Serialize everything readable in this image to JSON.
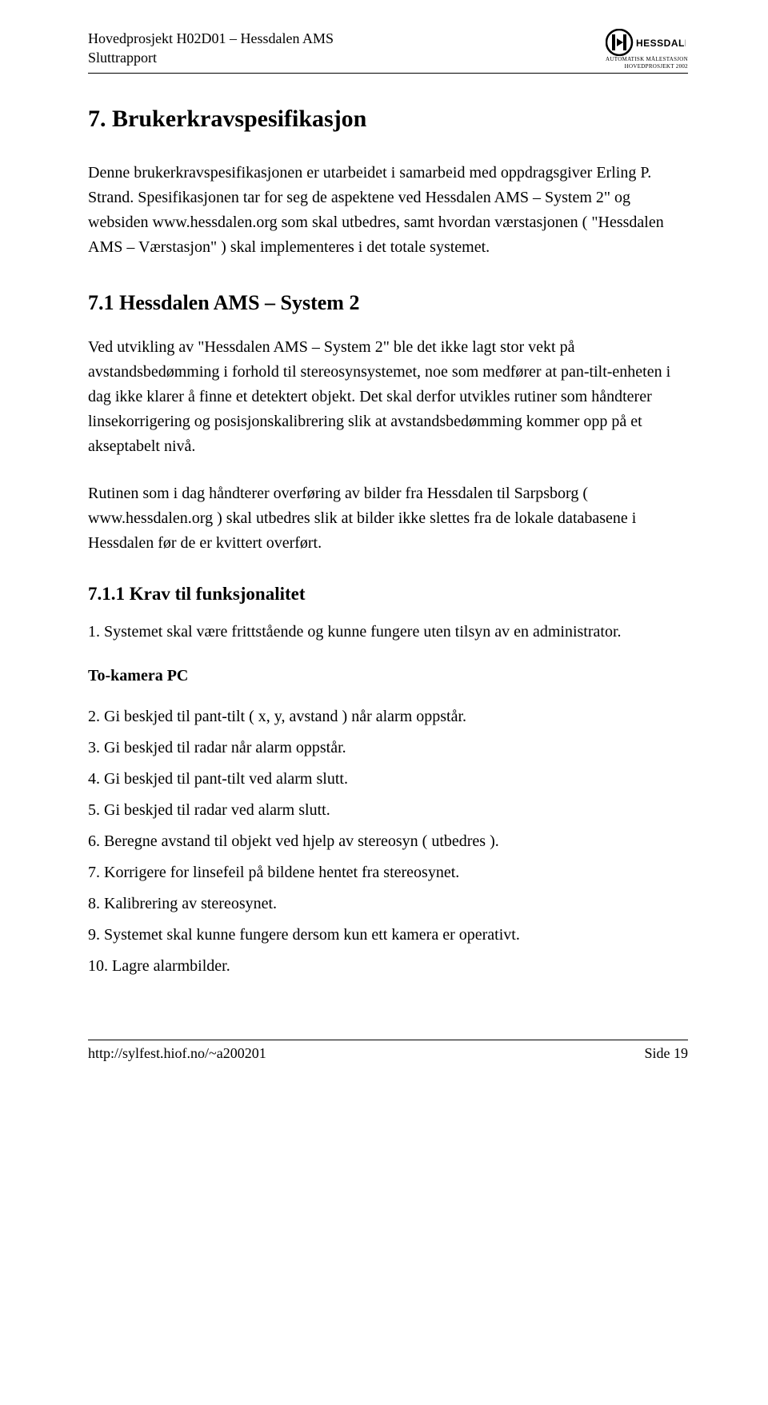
{
  "header": {
    "project_line": "Hovedprosjekt H02D01 – Hessdalen AMS",
    "subtitle": "Sluttrapport",
    "logo_brand": "HESSDALEN",
    "logo_sub1": "AUTOMATISK MÅLESTASJON",
    "logo_sub2": "HOVEDPROSJEKT 2002"
  },
  "h1": "7.  Brukerkravspesifikasjon",
  "p1": "Denne brukerkravspesifikasjonen er utarbeidet i samarbeid med oppdragsgiver Erling P. Strand. Spesifikasjonen tar for seg de aspektene ved Hessdalen AMS – System 2\" og websiden www.hessdalen.org som skal utbedres, samt hvordan værstasjonen ( \"Hessdalen AMS – Værstasjon\" ) skal implementeres i det totale systemet.",
  "h2": "7.1  Hessdalen AMS – System 2",
  "p2": "Ved utvikling av \"Hessdalen AMS – System 2\" ble det ikke lagt stor vekt på avstandsbedømming i forhold til stereosynsystemet, noe som medfører at pan-tilt-enheten i dag ikke klarer å finne et detektert objekt. Det skal derfor utvikles rutiner som håndterer linsekorrigering og posisjonskalibrering slik at avstandsbedømming kommer opp på et akseptabelt nivå.",
  "p3": "Rutinen som i dag håndterer overføring av bilder fra Hessdalen til Sarpsborg ( www.hessdalen.org ) skal utbedres slik at bilder ikke slettes fra de lokale databasene i Hessdalen før de er kvittert overført.",
  "h3": "7.1.1  Krav til funksjonalitet",
  "list1": [
    "1.  Systemet skal være frittstående og kunne fungere uten tilsyn av en administrator."
  ],
  "section_label": "To-kamera PC",
  "list2": [
    "2.  Gi beskjed til pant-tilt ( x, y, avstand ) når alarm oppstår.",
    "3.  Gi beskjed til radar når alarm oppstår.",
    "4.  Gi beskjed til pant-tilt ved alarm slutt.",
    "5.  Gi beskjed til radar ved alarm slutt.",
    "6.  Beregne avstand til objekt ved hjelp av stereosyn ( utbedres ).",
    "7.  Korrigere for linsefeil på bildene hentet fra stereosynet.",
    "8.  Kalibrering av stereosynet.",
    "9.  Systemet skal kunne fungere dersom kun ett kamera er operativt.",
    "10. Lagre alarmbilder."
  ],
  "footer": {
    "url": "http://sylfest.hiof.no/~a200201",
    "page": "Side 19"
  }
}
